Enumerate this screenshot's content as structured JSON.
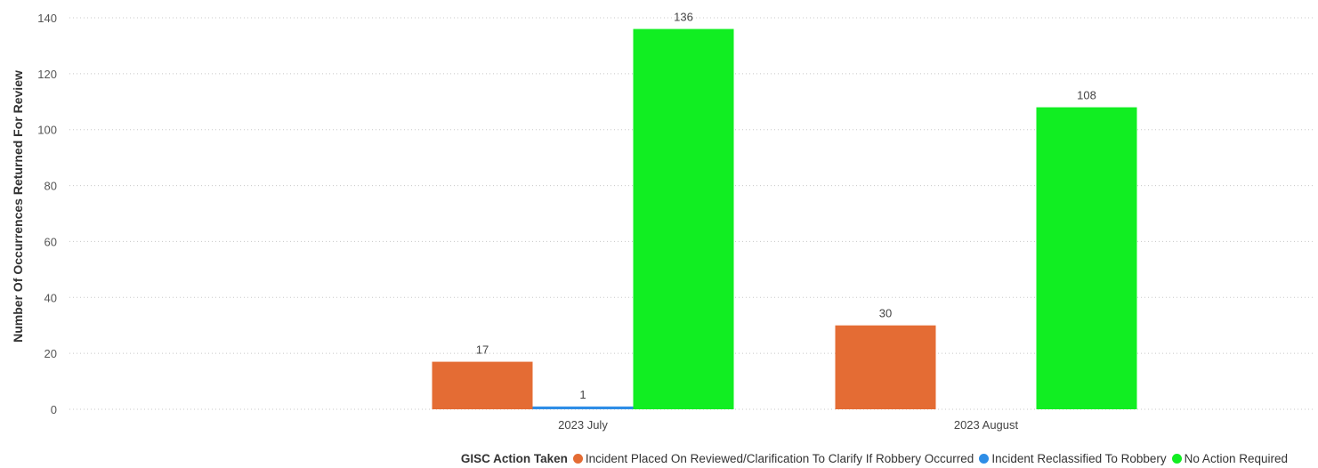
{
  "chart_data": {
    "type": "bar",
    "ylabel": "Number Of Occurrences Returned For Review",
    "xlabel": "",
    "ylim": [
      0,
      140
    ],
    "yticks": [
      0,
      20,
      40,
      60,
      80,
      100,
      120,
      140
    ],
    "grid": true,
    "legend_position": "bottom-right",
    "legend_title": "GISC Action Taken",
    "categories": [
      "2023 July",
      "2023 August"
    ],
    "series": [
      {
        "name": "Incident Placed On Reviewed/Clarification To Clarify If Robbery Occurred",
        "color": "#E46C34",
        "values": [
          17,
          30
        ]
      },
      {
        "name": "Incident Reclassified To Robbery",
        "color": "#2E8DE6",
        "values": [
          1,
          null
        ]
      },
      {
        "name": "No Action Required",
        "color": "#11EE22",
        "values": [
          136,
          108
        ]
      }
    ]
  }
}
